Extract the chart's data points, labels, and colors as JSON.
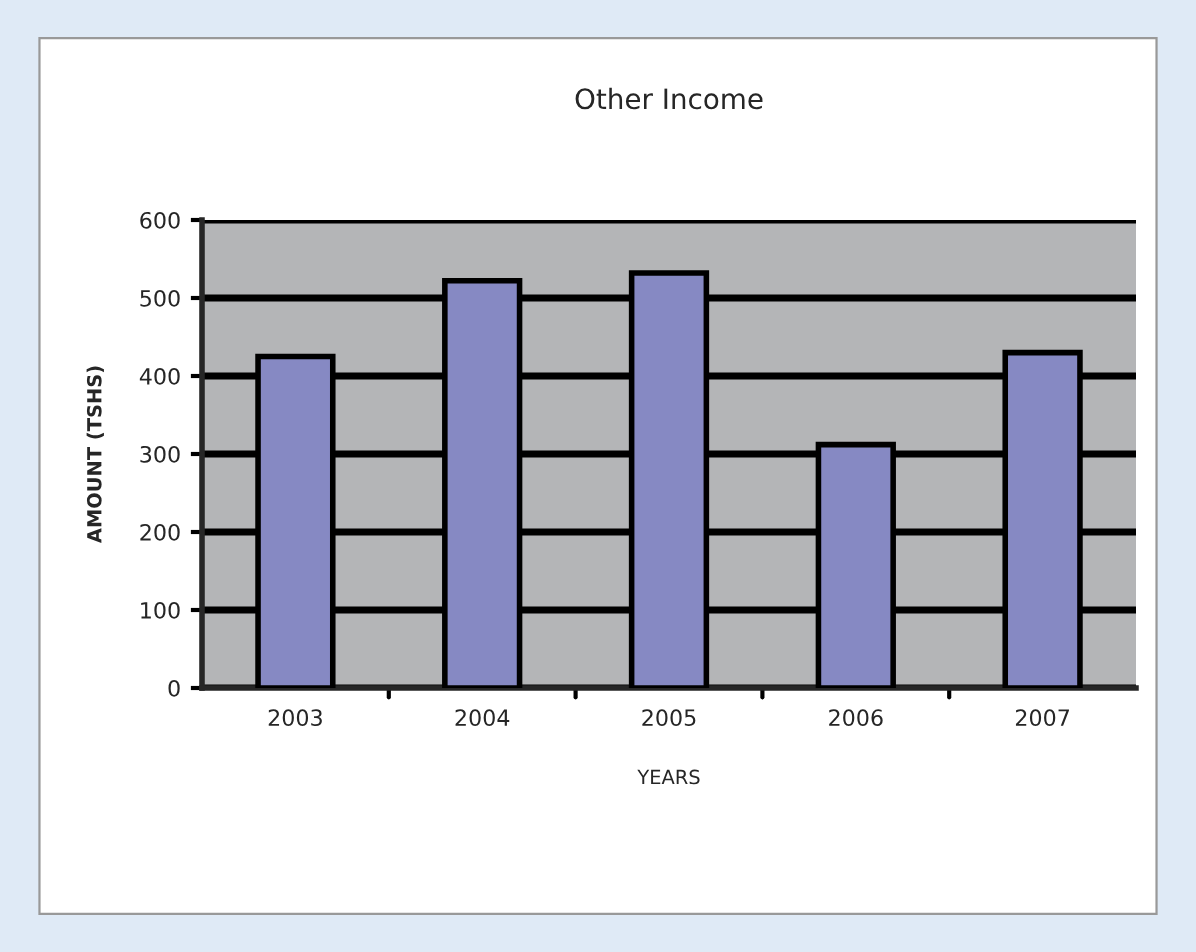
{
  "chart_data": {
    "type": "bar",
    "title": "Other Income",
    "xlabel": "YEARS",
    "ylabel": "AMOUNT (TSHS)",
    "categories": [
      "2003",
      "2004",
      "2005",
      "2006",
      "2007"
    ],
    "values": [
      425,
      522,
      532,
      312,
      430
    ],
    "color": "#8689c3",
    "ylim": [
      0,
      600
    ],
    "yticks": [
      0,
      100,
      200,
      300,
      400,
      500,
      600
    ],
    "grid": "y"
  }
}
